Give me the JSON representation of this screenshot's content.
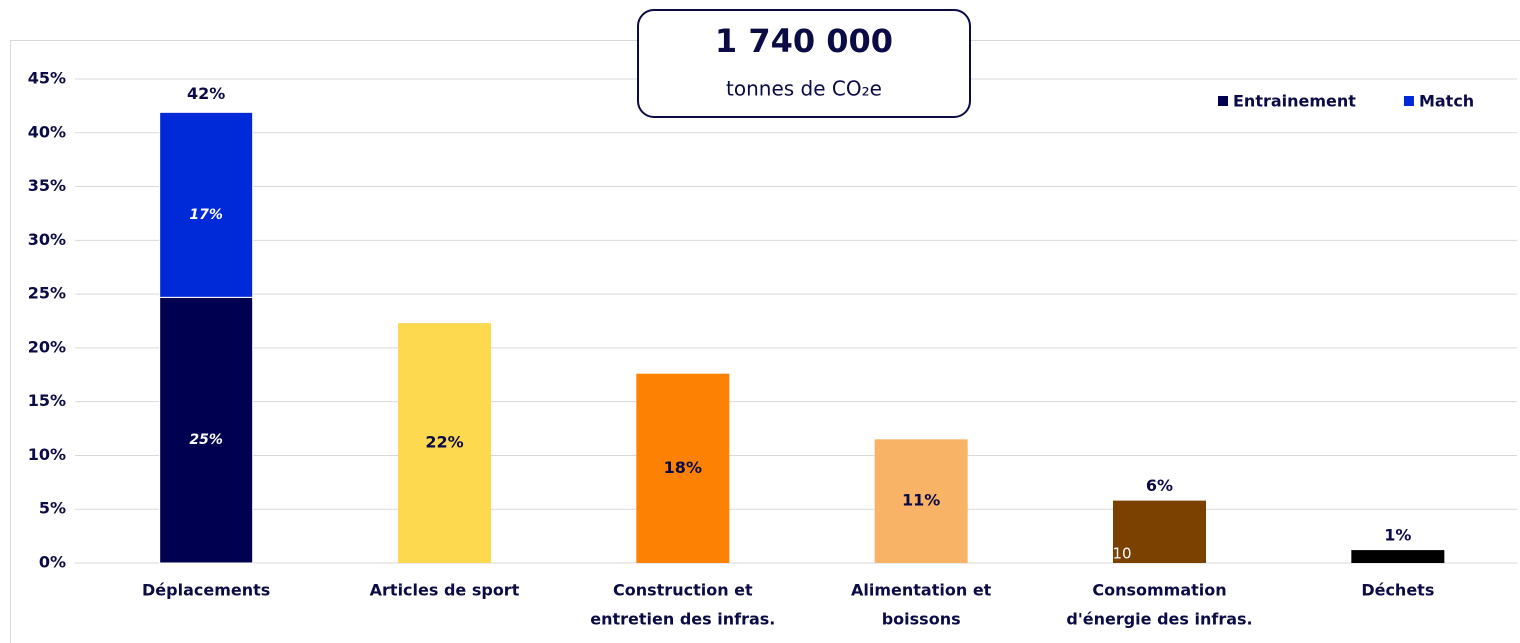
{
  "chart_data": {
    "type": "bar",
    "headline": "1 740 000",
    "headline_sub": "tonnes de CO₂e",
    "categories": [
      [
        "Déplacements"
      ],
      [
        "Articles de sport"
      ],
      [
        "Construction et",
        "entretien des infras."
      ],
      [
        "Alimentation et",
        "boissons"
      ],
      [
        "Consommation",
        "d'énergie des infras."
      ],
      [
        "Déchets"
      ]
    ],
    "series": [
      {
        "name": "Entrainement",
        "color": "#000050",
        "values": [
          24.7,
          null,
          null,
          null,
          null,
          null
        ],
        "value_labels": [
          "25%",
          null,
          null,
          null,
          null,
          null
        ]
      },
      {
        "name": "Match",
        "color": "#0029d8",
        "values": [
          17.2,
          null,
          null,
          null,
          null,
          null
        ],
        "value_labels": [
          "17%",
          null,
          null,
          null,
          null,
          null
        ]
      }
    ],
    "total_label": "42%",
    "values": [
      null,
      22.3,
      17.6,
      11.5,
      5.8,
      1.2
    ],
    "value_labels": [
      null,
      "22%",
      "18%",
      "11%",
      "6%",
      "1%"
    ],
    "colors": [
      null,
      "#fdd94f",
      "#fd8204",
      "#f9b366",
      "#7a4100",
      "#000000"
    ],
    "annotation": "10",
    "ylim": [
      0,
      45
    ],
    "yticks": [
      {
        "value": 0,
        "label": "0%"
      },
      {
        "value": 5,
        "label": "5%"
      },
      {
        "value": 10,
        "label": "10%"
      },
      {
        "value": 15,
        "label": "15%"
      },
      {
        "value": 20,
        "label": "20%"
      },
      {
        "value": 25,
        "label": "25%"
      },
      {
        "value": 30,
        "label": "30%"
      },
      {
        "value": 35,
        "label": "35%"
      },
      {
        "value": 40,
        "label": "40%"
      },
      {
        "value": 45,
        "label": "45%"
      }
    ],
    "grid": true,
    "legend": "top-right"
  }
}
